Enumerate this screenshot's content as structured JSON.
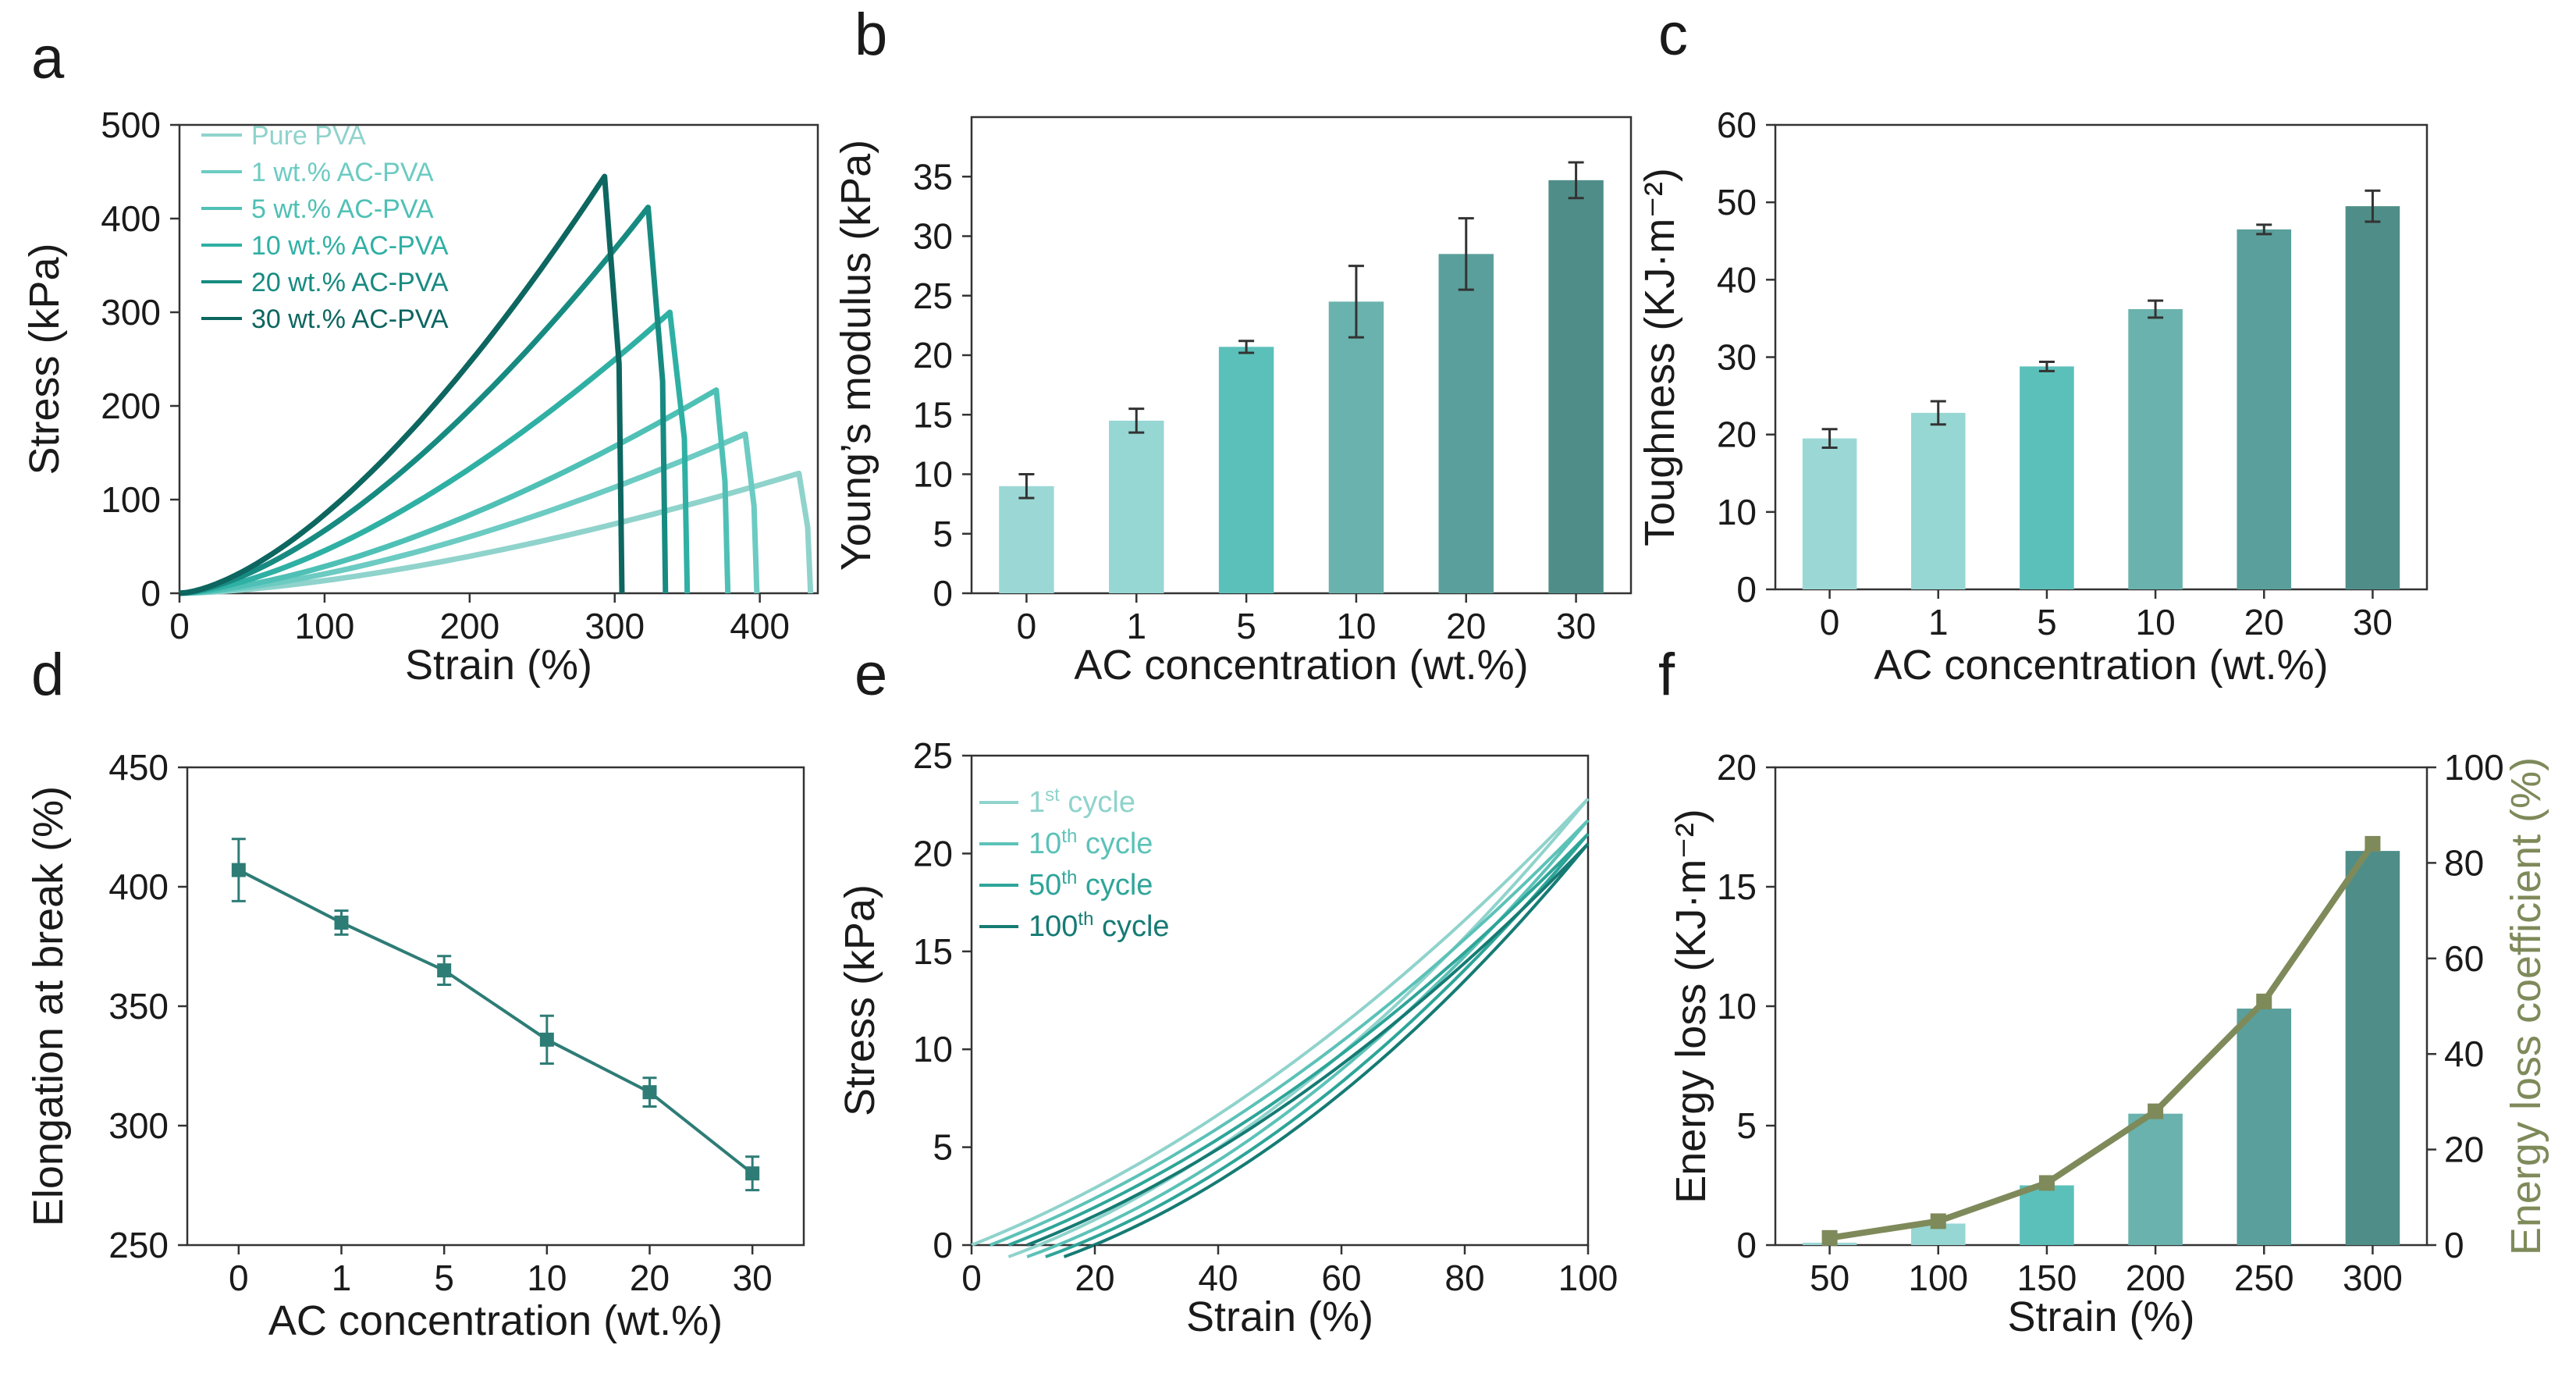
{
  "chart_data": [
    {
      "panel": "a",
      "type": "line",
      "xlabel": "Strain (%)",
      "ylabel": "Stress (kPa)",
      "xlim": [
        0,
        440
      ],
      "ylim": [
        0,
        500
      ],
      "xticks": [
        "0",
        "100",
        "200",
        "300",
        "400"
      ],
      "yticks": [
        "0",
        "100",
        "200",
        "300",
        "400",
        "500"
      ],
      "legend": "top-left",
      "series": [
        {
          "name": "Pure PVA",
          "color": "#8fd3cc",
          "break_strain": 427,
          "peak_stress": 128
        },
        {
          "name": "1 wt.% AC-PVA",
          "color": "#6ccbc2",
          "break_strain": 390,
          "peak_stress": 170
        },
        {
          "name": "5 wt.% AC-PVA",
          "color": "#4fc0b5",
          "break_strain": 370,
          "peak_stress": 217
        },
        {
          "name": "10 wt.% AC-PVA",
          "color": "#2fb0a4",
          "break_strain": 338,
          "peak_stress": 300
        },
        {
          "name": "20 wt.% AC-PVA",
          "color": "#178b81",
          "break_strain": 323,
          "peak_stress": 412
        },
        {
          "name": "30 wt.% AC-PVA",
          "color": "#0d6660",
          "break_strain": 293,
          "peak_stress": 445
        }
      ]
    },
    {
      "panel": "b",
      "type": "bar",
      "xlabel": "AC concentration (wt.%)",
      "ylabel": "Young’s modulus (kPa)",
      "categories": [
        "0",
        "1",
        "5",
        "10",
        "20",
        "30"
      ],
      "values": [
        9,
        14.5,
        20.7,
        24.5,
        28.5,
        34.7
      ],
      "errors": [
        1,
        1,
        0.5,
        3,
        3,
        1.5
      ],
      "ylim": [
        0,
        40
      ],
      "yticks": [
        "0",
        "5",
        "10",
        "15",
        "20",
        "25",
        "30",
        "35"
      ],
      "colors": [
        "#9bd8d5",
        "#96d6d3",
        "#5cc0ba",
        "#6ab2ad",
        "#5a9f9b",
        "#4f8e88"
      ]
    },
    {
      "panel": "c",
      "type": "bar",
      "xlabel": "AC concentration (wt.%)",
      "ylabel": "Toughness (KJ·m⁻²)",
      "categories": [
        "0",
        "1",
        "5",
        "10",
        "20",
        "30"
      ],
      "values": [
        19.5,
        22.8,
        28.8,
        36.2,
        46.5,
        49.5
      ],
      "errors": [
        1.2,
        1.5,
        0.6,
        1.1,
        0.6,
        2
      ],
      "ylim": [
        0,
        60
      ],
      "yticks": [
        "0",
        "10",
        "20",
        "30",
        "40",
        "50",
        "60"
      ],
      "colors": [
        "#9bd8d5",
        "#96d6d3",
        "#5cc0ba",
        "#6ab2ad",
        "#5a9f9b",
        "#4f8e88"
      ]
    },
    {
      "panel": "d",
      "type": "line",
      "xlabel": "AC concentration (wt.%)",
      "ylabel": "Elongation at break (%)",
      "categories": [
        "0",
        "1",
        "5",
        "10",
        "20",
        "30"
      ],
      "values": [
        407,
        385,
        365,
        336,
        314,
        280
      ],
      "errors": [
        13,
        5,
        6,
        10,
        6,
        7
      ],
      "ylim": [
        250,
        450
      ],
      "yticks": [
        "250",
        "300",
        "350",
        "400",
        "450"
      ],
      "color": "#2e7c76"
    },
    {
      "panel": "e",
      "type": "line",
      "xlabel": "Strain (%)",
      "ylabel": "Stress (kPa)",
      "xlim": [
        0,
        100
      ],
      "ylim": [
        0,
        25
      ],
      "xticks": [
        "0",
        "20",
        "40",
        "60",
        "80",
        "100"
      ],
      "yticks": [
        "0",
        "5",
        "10",
        "15",
        "20",
        "25"
      ],
      "legend": "top-left",
      "series": [
        {
          "name": "1st cycle",
          "sup": "st",
          "base": "1",
          "word": " cycle",
          "color": "#8fd3cc",
          "peak_stress": 22.8
        },
        {
          "name": "10th cycle",
          "sup": "th",
          "base": "10",
          "word": " cycle",
          "color": "#5cc2b8",
          "peak_stress": 21.7
        },
        {
          "name": "50th cycle",
          "sup": "th",
          "base": "50",
          "word": " cycle",
          "color": "#2ea599",
          "peak_stress": 21.0
        },
        {
          "name": "100th cycle",
          "sup": "th",
          "base": "100",
          "word": " cycle",
          "color": "#157b74",
          "peak_stress": 20.5
        }
      ]
    },
    {
      "panel": "f",
      "type": "bar",
      "xlabel": "Strain (%)",
      "ylabel": "Energy loss (KJ·m⁻²)",
      "y2label": "Energy loss coefficient (%)",
      "categories": [
        "50",
        "100",
        "150",
        "200",
        "250",
        "300"
      ],
      "values": [
        0.1,
        0.9,
        2.5,
        5.5,
        9.9,
        16.5
      ],
      "ylim": [
        0,
        20
      ],
      "yticks": [
        "0",
        "5",
        "10",
        "15",
        "20"
      ],
      "y2lim": [
        0,
        100
      ],
      "y2ticks": [
        "0",
        "20",
        "40",
        "60",
        "80",
        "100"
      ],
      "coefficient": [
        1.5,
        5,
        13,
        28,
        51,
        84
      ],
      "colors": [
        "#9bd8d5",
        "#96d6d3",
        "#5cc0ba",
        "#6ab2ad",
        "#5a9f9b",
        "#4f8e88"
      ],
      "line_color": "#7e8a5a"
    }
  ]
}
